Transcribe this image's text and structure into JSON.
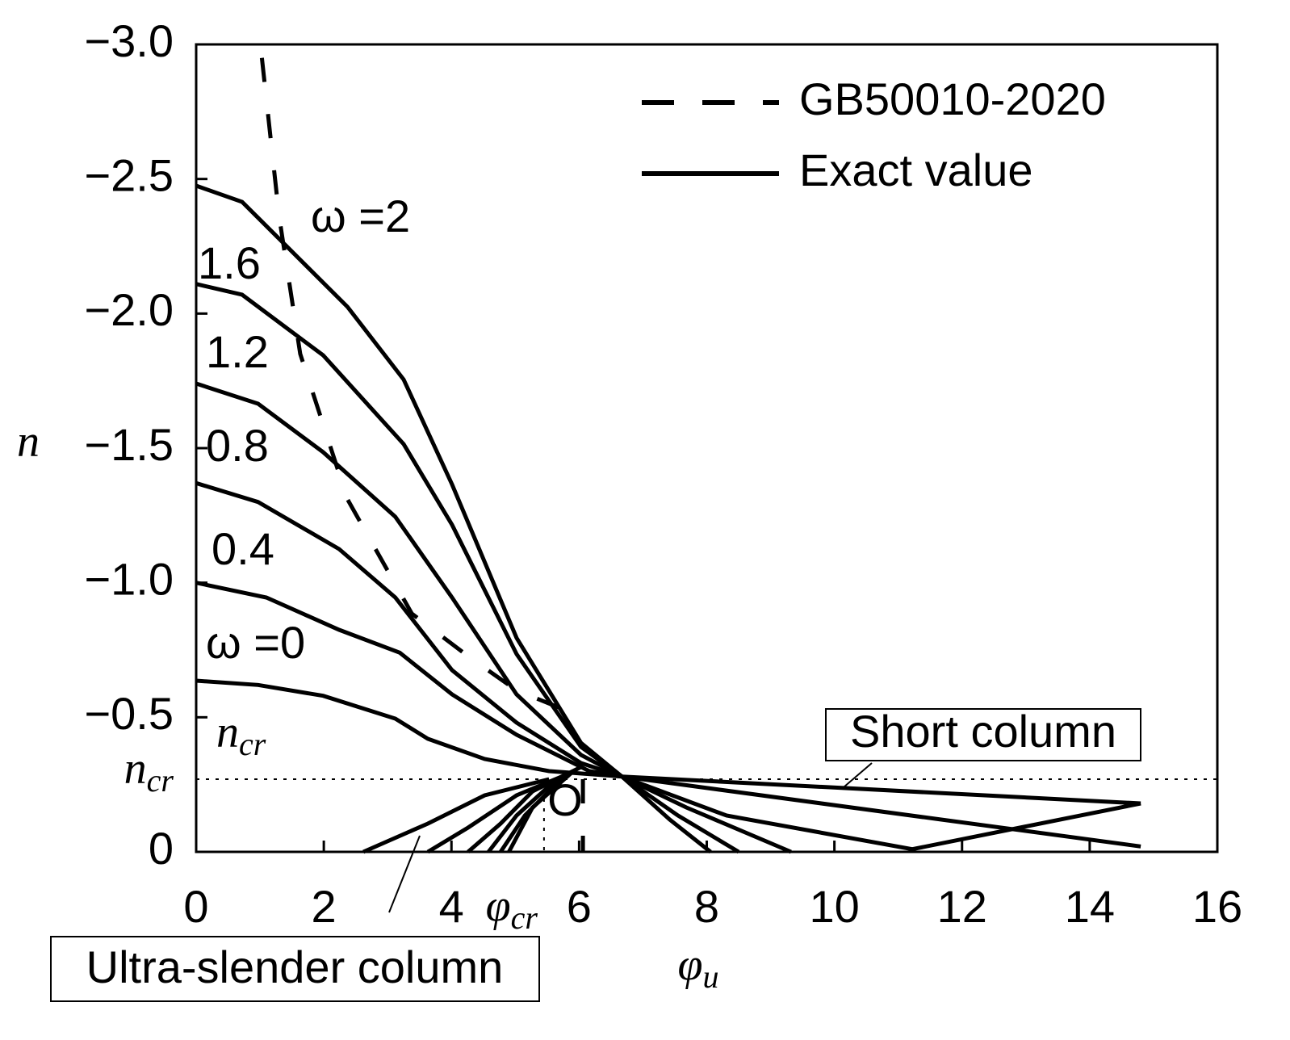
{
  "chart_data": {
    "type": "line",
    "xlabel": "φ",
    "xlabel_sub": "u",
    "ylabel": "n",
    "xlim": [
      0,
      16
    ],
    "ylim": [
      0,
      -3
    ],
    "xticks": [
      0,
      2,
      4,
      6,
      8,
      10,
      12,
      14,
      16
    ],
    "yticks": [
      0,
      {
        "value": -0.5,
        "label": "−0.5"
      },
      {
        "value": -1.0,
        "label": "−1.0"
      },
      {
        "value": -1.5,
        "label": "−1.5"
      },
      {
        "value": -2.0,
        "label": "−2.0"
      },
      {
        "value": -2.5,
        "label": "−2.5"
      },
      {
        "value": -3.0,
        "label": "−3.0"
      }
    ],
    "y_reference": {
      "value": -0.27,
      "label": "n",
      "sub": "cr"
    },
    "x_reference": {
      "value": 5.45,
      "label": "φ",
      "sub": "cr"
    },
    "annotations": {
      "ncr": {
        "label": "n",
        "sub": "cr"
      },
      "origin": "O",
      "short": "Short column",
      "ultra": "Ultra-slender column"
    },
    "series": [
      {
        "name": "GB50010-2020",
        "color": "#000000",
        "dash": true,
        "x": [
          1.03,
          1.3,
          1.63,
          2.37,
          3.38,
          4.3,
          5.02,
          6.06,
          null,
          6.06,
          6.06
        ],
        "values": [
          -2.95,
          -2.36,
          -1.85,
          -1.31,
          -0.885,
          -0.72,
          -0.6,
          -0.5,
          null,
          -0.27,
          0
        ]
      },
      {
        "name": "Exact value",
        "color": "#000000",
        "dash": false,
        "curves": [
          {
            "label": "ω =0",
            "x": [
              0,
              0.97,
              1.99,
              3.12,
              3.63,
              4.52,
              5.53,
              6.67,
              14.8,
              null,
              2.62,
              3.63,
              4.52,
              5.53
            ],
            "values": [
              -0.636,
              -0.62,
              -0.58,
              -0.495,
              -0.42,
              -0.345,
              -0.3,
              -0.28,
              -0.18,
              null,
              0,
              -0.105,
              -0.21,
              -0.27
            ]
          },
          {
            "label": "0.4",
            "x": [
              0,
              1.1,
              2.24,
              3.19,
              4.01,
              5.02,
              6.16,
              6.67,
              14.8,
              null,
              3.63,
              4.26,
              5.02,
              5.78
            ],
            "values": [
              -1.0,
              -0.945,
              -0.825,
              -0.74,
              -0.585,
              -0.435,
              -0.3,
              -0.28,
              -0.02,
              null,
              0,
              -0.09,
              -0.21,
              -0.285
            ]
          },
          {
            "label": "0.8",
            "x": [
              0,
              0.97,
              2.24,
              3.12,
              4.01,
              5.02,
              6.03,
              6.67,
              8.31,
              11.22,
              14.8,
              null,
              4.26,
              4.77,
              5.27,
              5.91
            ],
            "values": [
              -1.37,
              -1.3,
              -1.125,
              -0.945,
              -0.675,
              -0.48,
              -0.33,
              -0.28,
              -0.135,
              -0.01,
              -0.18,
              null,
              0,
              -0.105,
              -0.225,
              -0.3
            ]
          },
          {
            "label": "1.2",
            "x": [
              0,
              0.97,
              1.99,
              3.12,
              4.01,
              5.02,
              6.03,
              6.67,
              7.68,
              9.32,
              null,
              4.58,
              5.02,
              5.65,
              6.03
            ],
            "values": [
              -1.74,
              -1.665,
              -1.485,
              -1.245,
              -0.945,
              -0.585,
              -0.36,
              -0.28,
              -0.165,
              0,
              null,
              0,
              -0.135,
              -0.27,
              -0.315
            ]
          },
          {
            "label": "1.6",
            "x": [
              0,
              0.72,
              1.99,
              3.25,
              4.01,
              5.02,
              6.03,
              6.67,
              7.55,
              8.5,
              null,
              4.77,
              5.15,
              5.78
            ],
            "values": [
              -2.11,
              -2.07,
              -1.845,
              -1.515,
              -1.215,
              -0.735,
              -0.39,
              -0.28,
              -0.135,
              0,
              null,
              0,
              -0.135,
              -0.285
            ]
          },
          {
            "label": "ω =2",
            "x": [
              0,
              0.72,
              2.37,
              3.25,
              4.01,
              5.02,
              6.03,
              6.67,
              7.42,
              8.06,
              null,
              4.9,
              5.27,
              5.91
            ],
            "values": [
              -2.475,
              -2.415,
              -2.025,
              -1.755,
              -1.365,
              -0.795,
              -0.405,
              -0.28,
              -0.12,
              0,
              null,
              0,
              -0.165,
              -0.3
            ]
          }
        ]
      }
    ]
  }
}
